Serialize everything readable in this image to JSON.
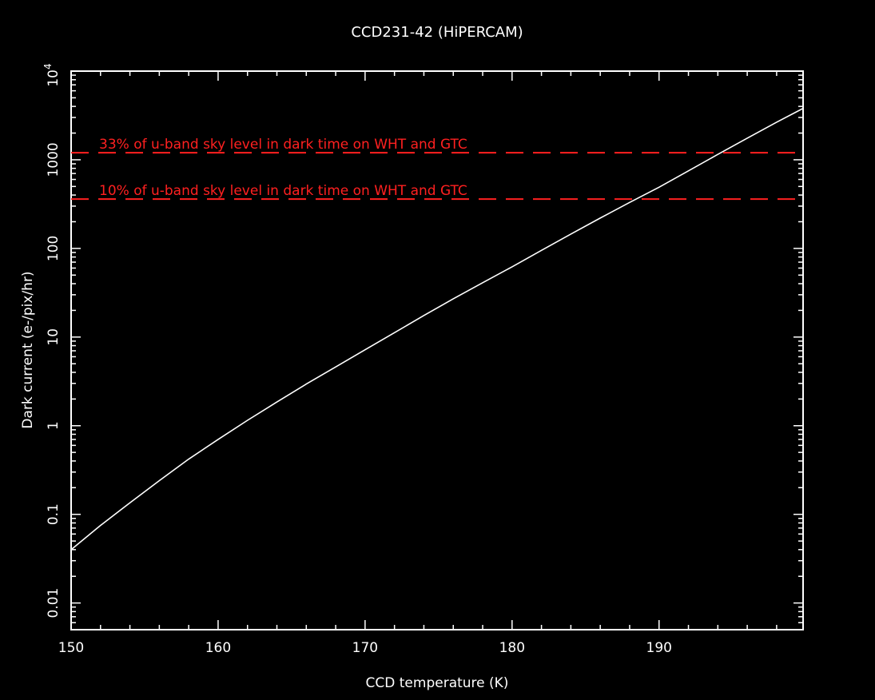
{
  "chart_data": {
    "type": "line",
    "title": "CCD231-42 (HiPERCAM)",
    "xlabel": "CCD temperature (K)",
    "ylabel": "Dark current (e-/pix/hr)",
    "xlim": [
      150,
      199.8
    ],
    "ylim": [
      0.005,
      10000
    ],
    "yscale": "log",
    "x_ticks": [
      150,
      160,
      170,
      180,
      190
    ],
    "x_tick_labels": [
      "150",
      "160",
      "170",
      "180",
      "190"
    ],
    "y_ticks": [
      0.01,
      0.1,
      1,
      10,
      100,
      1000
    ],
    "y_tick_labels": [
      "0.01",
      "0.1",
      "1",
      "10",
      "100",
      "1000"
    ],
    "y_top_label_base": "10",
    "y_top_label_exp": "4",
    "grid": false,
    "series": [
      {
        "color": "#ffffff",
        "x": [
          150,
          152,
          154,
          156,
          158,
          160,
          162,
          164,
          166,
          168,
          170,
          172,
          174,
          176,
          178,
          180,
          182,
          184,
          186,
          188,
          190,
          192,
          194,
          196,
          198,
          199.8
        ],
        "y": [
          0.04,
          0.075,
          0.135,
          0.24,
          0.42,
          0.7,
          1.15,
          1.85,
          2.95,
          4.6,
          7.2,
          11.2,
          17.5,
          27,
          41,
          62,
          95,
          145,
          220,
          330,
          490,
          750,
          1150,
          1750,
          2650,
          3800
        ]
      }
    ],
    "reference_lines": [
      {
        "y": 1200,
        "label": "33% of u-band sky level in dark time on WHT and GTC",
        "color": "#ff2020"
      },
      {
        "y": 360,
        "label": "10% of u-band sky level in dark time on WHT and GTC",
        "color": "#ff2020"
      }
    ]
  }
}
